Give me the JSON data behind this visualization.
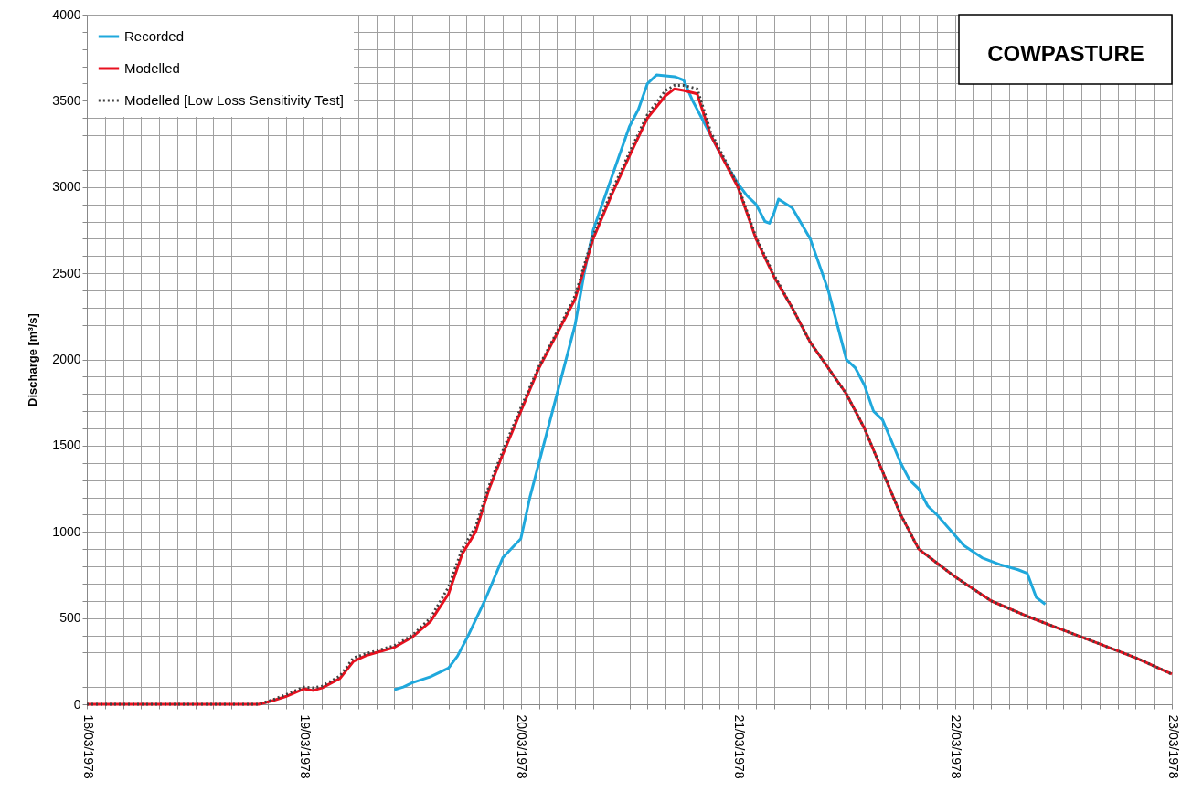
{
  "chart_data": {
    "type": "line",
    "title": "COWPASTURE",
    "ylabel": "Discharge [m³/s]",
    "legend": "top left",
    "grid": true,
    "xlim": [
      "1978-03-18T00:00",
      "1978-03-23T00:00"
    ],
    "ylim": [
      0,
      4000
    ],
    "xticks": [
      {
        "value": "1978-03-18T00:00",
        "label": "18/03/1978"
      },
      {
        "value": "1978-03-18T02:00",
        "label": null
      },
      {
        "value": "1978-03-18T04:00",
        "label": null
      },
      {
        "value": "1978-03-18T06:00",
        "label": null
      },
      {
        "value": "1978-03-18T08:00",
        "label": null
      },
      {
        "value": "1978-03-18T10:00",
        "label": null
      },
      {
        "value": "1978-03-18T12:00",
        "label": null
      },
      {
        "value": "1978-03-18T14:00",
        "label": null
      },
      {
        "value": "1978-03-18T16:00",
        "label": null
      },
      {
        "value": "1978-03-18T18:00",
        "label": null
      },
      {
        "value": "1978-03-18T20:00",
        "label": null
      },
      {
        "value": "1978-03-18T22:00",
        "label": null
      },
      {
        "value": "1978-03-19T00:00",
        "label": "19/03/1978"
      },
      {
        "value": "1978-03-19T02:00",
        "label": null
      },
      {
        "value": "1978-03-19T04:00",
        "label": null
      },
      {
        "value": "1978-03-19T06:00",
        "label": null
      },
      {
        "value": "1978-03-19T08:00",
        "label": null
      },
      {
        "value": "1978-03-19T10:00",
        "label": null
      },
      {
        "value": "1978-03-19T12:00",
        "label": null
      },
      {
        "value": "1978-03-19T14:00",
        "label": null
      },
      {
        "value": "1978-03-19T16:00",
        "label": null
      },
      {
        "value": "1978-03-19T18:00",
        "label": null
      },
      {
        "value": "1978-03-19T20:00",
        "label": null
      },
      {
        "value": "1978-03-19T22:00",
        "label": null
      },
      {
        "value": "1978-03-20T00:00",
        "label": "20/03/1978"
      },
      {
        "value": "1978-03-20T02:00",
        "label": null
      },
      {
        "value": "1978-03-20T04:00",
        "label": null
      },
      {
        "value": "1978-03-20T06:00",
        "label": null
      },
      {
        "value": "1978-03-20T08:00",
        "label": null
      },
      {
        "value": "1978-03-20T10:00",
        "label": null
      },
      {
        "value": "1978-03-20T12:00",
        "label": null
      },
      {
        "value": "1978-03-20T14:00",
        "label": null
      },
      {
        "value": "1978-03-20T16:00",
        "label": null
      },
      {
        "value": "1978-03-20T18:00",
        "label": null
      },
      {
        "value": "1978-03-20T20:00",
        "label": null
      },
      {
        "value": "1978-03-20T22:00",
        "label": null
      },
      {
        "value": "1978-03-21T00:00",
        "label": "21/03/1978"
      },
      {
        "value": "1978-03-21T02:00",
        "label": null
      },
      {
        "value": "1978-03-21T04:00",
        "label": null
      },
      {
        "value": "1978-03-21T06:00",
        "label": null
      },
      {
        "value": "1978-03-21T08:00",
        "label": null
      },
      {
        "value": "1978-03-21T10:00",
        "label": null
      },
      {
        "value": "1978-03-21T12:00",
        "label": null
      },
      {
        "value": "1978-03-21T14:00",
        "label": null
      },
      {
        "value": "1978-03-21T16:00",
        "label": null
      },
      {
        "value": "1978-03-21T18:00",
        "label": null
      },
      {
        "value": "1978-03-21T20:00",
        "label": null
      },
      {
        "value": "1978-03-21T22:00",
        "label": null
      },
      {
        "value": "1978-03-22T00:00",
        "label": "22/03/1978"
      },
      {
        "value": "1978-03-22T02:00",
        "label": null
      },
      {
        "value": "1978-03-22T04:00",
        "label": null
      },
      {
        "value": "1978-03-22T06:00",
        "label": null
      },
      {
        "value": "1978-03-22T08:00",
        "label": null
      },
      {
        "value": "1978-03-22T10:00",
        "label": null
      },
      {
        "value": "1978-03-22T12:00",
        "label": null
      },
      {
        "value": "1978-03-22T14:00",
        "label": null
      },
      {
        "value": "1978-03-22T16:00",
        "label": null
      },
      {
        "value": "1978-03-22T18:00",
        "label": null
      },
      {
        "value": "1978-03-22T20:00",
        "label": null
      },
      {
        "value": "1978-03-22T22:00",
        "label": null
      },
      {
        "value": "1978-03-23T00:00",
        "label": "23/03/1978"
      }
    ],
    "yticks": [
      0,
      {
        "value": 100,
        "label": null
      },
      {
        "value": 200,
        "label": null
      },
      {
        "value": 300,
        "label": null
      },
      {
        "value": 400,
        "label": null
      },
      500,
      {
        "value": 600,
        "label": null
      },
      {
        "value": 700,
        "label": null
      },
      {
        "value": 800,
        "label": null
      },
      {
        "value": 900,
        "label": null
      },
      1000,
      {
        "value": 1100,
        "label": null
      },
      {
        "value": 1200,
        "label": null
      },
      {
        "value": 1300,
        "label": null
      },
      {
        "value": 1400,
        "label": null
      },
      1500,
      {
        "value": 1600,
        "label": null
      },
      {
        "value": 1700,
        "label": null
      },
      {
        "value": 1800,
        "label": null
      },
      {
        "value": 1900,
        "label": null
      },
      2000,
      {
        "value": 2100,
        "label": null
      },
      {
        "value": 2200,
        "label": null
      },
      {
        "value": 2300,
        "label": null
      },
      {
        "value": 2400,
        "label": null
      },
      2500,
      {
        "value": 2600,
        "label": null
      },
      {
        "value": 2700,
        "label": null
      },
      {
        "value": 2800,
        "label": null
      },
      {
        "value": 2900,
        "label": null
      },
      3000,
      {
        "value": 3100,
        "label": null
      },
      {
        "value": 3200,
        "label": null
      },
      {
        "value": 3300,
        "label": null
      },
      {
        "value": 3400,
        "label": null
      },
      3500,
      {
        "value": 3600,
        "label": null
      },
      {
        "value": 3700,
        "label": null
      },
      {
        "value": 3800,
        "label": null
      },
      {
        "value": 3900,
        "label": null
      },
      4000
    ],
    "series": [
      {
        "name": "Recorded",
        "color": "#1fa8dc",
        "line_style": "solid",
        "x": [
          "1978-03-19T10:00",
          "1978-03-19T11:00",
          "1978-03-19T12:00",
          "1978-03-19T14:00",
          "1978-03-19T16:00",
          "1978-03-19T17:00",
          "1978-03-19T18:00",
          "1978-03-19T20:00",
          "1978-03-19T22:00",
          "1978-03-20T00:00",
          "1978-03-20T01:00",
          "1978-03-20T02:00",
          "1978-03-20T04:00",
          "1978-03-20T06:00",
          "1978-03-20T07:00",
          "1978-03-20T08:00",
          "1978-03-20T10:00",
          "1978-03-20T12:00",
          "1978-03-20T13:00",
          "1978-03-20T14:00",
          "1978-03-20T15:00",
          "1978-03-20T17:00",
          "1978-03-20T18:00",
          "1978-03-20T19:00",
          "1978-03-20T20:00",
          "1978-03-20T22:00",
          "1978-03-21T00:00",
          "1978-03-21T01:00",
          "1978-03-21T02:00",
          "1978-03-21T03:00",
          "1978-03-21T03:30",
          "1978-03-21T04:00",
          "1978-03-21T04:30",
          "1978-03-21T06:00",
          "1978-03-21T08:00",
          "1978-03-21T10:00",
          "1978-03-21T11:00",
          "1978-03-21T12:00",
          "1978-03-21T13:00",
          "1978-03-21T14:00",
          "1978-03-21T15:00",
          "1978-03-21T16:00",
          "1978-03-21T18:00",
          "1978-03-21T19:00",
          "1978-03-21T20:00",
          "1978-03-21T21:00",
          "1978-03-21T22:00",
          "1978-03-22T00:00",
          "1978-03-22T01:00",
          "1978-03-22T03:00",
          "1978-03-22T05:00",
          "1978-03-22T07:00",
          "1978-03-22T08:00",
          "1978-03-22T09:00",
          "1978-03-22T10:00"
        ],
        "values": [
          85,
          100,
          125,
          160,
          210,
          280,
          380,
          600,
          850,
          960,
          1200,
          1400,
          1800,
          2200,
          2500,
          2750,
          3050,
          3350,
          3450,
          3600,
          3650,
          3640,
          3620,
          3500,
          3400,
          3200,
          3020,
          2950,
          2900,
          2800,
          2790,
          2850,
          2930,
          2880,
          2700,
          2400,
          2200,
          2000,
          1950,
          1850,
          1700,
          1650,
          1400,
          1300,
          1250,
          1150,
          1100,
          980,
          920,
          850,
          810,
          780,
          760,
          620,
          580
        ]
      },
      {
        "name": "Modelled",
        "color": "#e8101f",
        "line_style": "solid",
        "x": [
          "1978-03-18T00:00",
          "1978-03-18T19:00",
          "1978-03-18T20:30",
          "1978-03-18T22:00",
          "1978-03-19T00:00",
          "1978-03-19T01:00",
          "1978-03-19T02:00",
          "1978-03-19T04:00",
          "1978-03-19T05:30",
          "1978-03-19T07:00",
          "1978-03-19T10:00",
          "1978-03-19T12:00",
          "1978-03-19T14:00",
          "1978-03-19T16:00",
          "1978-03-19T17:30",
          "1978-03-19T19:00",
          "1978-03-19T20:30",
          "1978-03-19T22:00",
          "1978-03-20T00:00",
          "1978-03-20T02:00",
          "1978-03-20T04:00",
          "1978-03-20T06:00",
          "1978-03-20T08:00",
          "1978-03-20T10:00",
          "1978-03-20T12:00",
          "1978-03-20T14:00",
          "1978-03-20T16:00",
          "1978-03-20T17:00",
          "1978-03-20T18:00",
          "1978-03-20T19:30",
          "1978-03-20T21:00",
          "1978-03-21T00:00",
          "1978-03-21T02:00",
          "1978-03-21T04:00",
          "1978-03-21T06:00",
          "1978-03-21T08:00",
          "1978-03-21T10:00",
          "1978-03-21T12:00",
          "1978-03-21T14:00",
          "1978-03-21T16:00",
          "1978-03-21T18:00",
          "1978-03-21T20:00",
          "1978-03-22T00:00",
          "1978-03-22T04:00",
          "1978-03-22T08:00",
          "1978-03-22T12:00",
          "1978-03-22T16:00",
          "1978-03-22T20:00",
          "1978-03-23T00:00"
        ],
        "values": [
          0,
          0,
          20,
          45,
          90,
          80,
          95,
          150,
          250,
          285,
          330,
          390,
          480,
          640,
          870,
          1000,
          1250,
          1450,
          1700,
          1950,
          2150,
          2350,
          2700,
          2950,
          3180,
          3400,
          3530,
          3570,
          3560,
          3540,
          3300,
          3000,
          2700,
          2480,
          2300,
          2100,
          1950,
          1800,
          1600,
          1350,
          1100,
          900,
          740,
          600,
          510,
          430,
          350,
          270,
          175
        ]
      },
      {
        "name": "Modelled [Low Loss Sensitivity Test]",
        "color": "#404040",
        "line_style": "dotted",
        "x": [
          "1978-03-18T00:00",
          "1978-03-18T19:00",
          "1978-03-18T20:30",
          "1978-03-18T22:00",
          "1978-03-19T00:00",
          "1978-03-19T01:00",
          "1978-03-19T02:00",
          "1978-03-19T04:00",
          "1978-03-19T05:30",
          "1978-03-19T07:00",
          "1978-03-19T10:00",
          "1978-03-19T12:00",
          "1978-03-19T14:00",
          "1978-03-19T16:00",
          "1978-03-19T17:30",
          "1978-03-19T19:00",
          "1978-03-19T20:30",
          "1978-03-19T22:00",
          "1978-03-20T00:00",
          "1978-03-20T02:00",
          "1978-03-20T04:00",
          "1978-03-20T06:00",
          "1978-03-20T08:00",
          "1978-03-20T10:00",
          "1978-03-20T12:00",
          "1978-03-20T14:00",
          "1978-03-20T16:00",
          "1978-03-20T17:00",
          "1978-03-20T18:00",
          "1978-03-20T19:30",
          "1978-03-20T21:00",
          "1978-03-21T00:00",
          "1978-03-21T02:00",
          "1978-03-21T04:00",
          "1978-03-21T06:00",
          "1978-03-21T08:00",
          "1978-03-21T10:00",
          "1978-03-21T12:00",
          "1978-03-21T14:00",
          "1978-03-21T16:00",
          "1978-03-21T18:00",
          "1978-03-21T20:00",
          "1978-03-22T00:00",
          "1978-03-22T04:00",
          "1978-03-22T08:00",
          "1978-03-22T12:00",
          "1978-03-22T16:00",
          "1978-03-22T20:00",
          "1978-03-23T00:00"
        ],
        "values": [
          0,
          0,
          25,
          55,
          100,
          95,
          105,
          165,
          270,
          295,
          340,
          400,
          500,
          680,
          900,
          1030,
          1270,
          1470,
          1720,
          1960,
          2160,
          2370,
          2720,
          2970,
          3200,
          3420,
          3560,
          3590,
          3590,
          3570,
          3320,
          3010,
          2710,
          2490,
          2300,
          2100,
          1950,
          1800,
          1600,
          1350,
          1100,
          900,
          740,
          600,
          510,
          430,
          350,
          270,
          175
        ]
      }
    ]
  }
}
